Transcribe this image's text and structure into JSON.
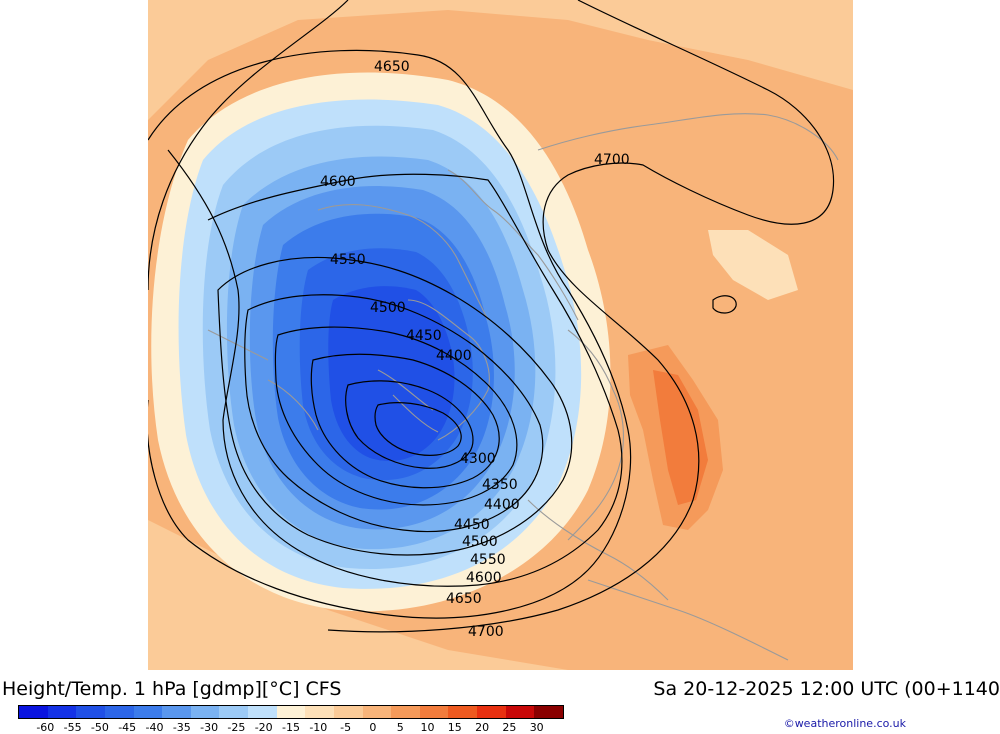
{
  "footer": {
    "title": "Height/Temp. 1 hPa [gdmp][°C] CFS",
    "datetime": "Sa 20-12-2025 12:00 UTC (00+1140",
    "credit": "©weatheronline.co.uk"
  },
  "colorbar": {
    "labels": [
      "-60",
      "-55",
      "-50",
      "-45",
      "-40",
      "-35",
      "-30",
      "-25",
      "-20",
      "-15",
      "-10",
      "-5",
      "0",
      "5",
      "10",
      "15",
      "20",
      "25",
      "30"
    ],
    "colors": [
      "#0a14e0",
      "#1432e6",
      "#2050e6",
      "#2c66e8",
      "#3c7ceb",
      "#5a97ee",
      "#7ab2f2",
      "#9ccaf6",
      "#bfe0fb",
      "#fdf1d6",
      "#fde0b8",
      "#fbcb98",
      "#f8b47a",
      "#f59a5a",
      "#f27c3c",
      "#ee5a20",
      "#e83010",
      "#c80808",
      "#8a0000"
    ]
  },
  "map": {
    "contour_labels": [
      "4650",
      "4700",
      "4600",
      "4550",
      "4500",
      "4450",
      "4400",
      "4300",
      "4350",
      "4400",
      "4450",
      "4500",
      "4550",
      "4600",
      "4650",
      "4700"
    ]
  }
}
